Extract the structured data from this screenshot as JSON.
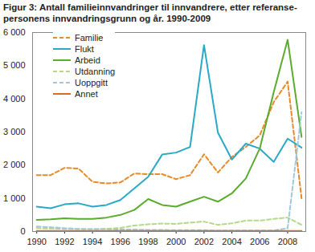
{
  "chart_data": {
    "type": "line",
    "title": "Figur 3: Antall familieinnvandringer til innvandrere, etter referanse-\npersonens innvandringsgrunn og år. 1990-2009",
    "x": [
      1990,
      1991,
      1992,
      1993,
      1994,
      1995,
      1996,
      1997,
      1998,
      1999,
      2000,
      2001,
      2002,
      2003,
      2004,
      2005,
      2006,
      2007,
      2008,
      2009
    ],
    "xlim": [
      1989.7,
      2009.3
    ],
    "xticks": [
      1990,
      1992,
      1994,
      1996,
      1998,
      2000,
      2002,
      2004,
      2006,
      2008
    ],
    "ylim": [
      0,
      6000
    ],
    "yticks": [
      0,
      {
        "value": 1000,
        "label": "1 000"
      },
      {
        "value": 2000,
        "label": "2 000"
      },
      {
        "value": 3000,
        "label": "3 000"
      },
      {
        "value": 4000,
        "label": "4 000"
      },
      {
        "value": 5000,
        "label": "5 000"
      },
      {
        "value": 6000,
        "label": "6 000"
      }
    ],
    "grid": false,
    "legend": "top-left",
    "series": [
      {
        "name": "Familie",
        "color": "#e8892b",
        "line_style": "dashed",
        "values": [
          1700,
          1700,
          1920,
          1900,
          1500,
          1450,
          1480,
          1750,
          1730,
          1730,
          1580,
          1700,
          2330,
          1780,
          2250,
          2550,
          2900,
          3900,
          4520,
          1000
        ]
      },
      {
        "name": "Flukt",
        "color": "#2aa8c7",
        "line_style": "solid",
        "values": [
          750,
          700,
          820,
          850,
          750,
          800,
          950,
          1300,
          1650,
          2320,
          2380,
          2550,
          5620,
          2980,
          2170,
          2650,
          2500,
          2100,
          2800,
          2530
        ]
      },
      {
        "name": "Arbeid",
        "color": "#5aab2e",
        "line_style": "solid",
        "values": [
          350,
          370,
          400,
          380,
          380,
          420,
          500,
          650,
          980,
          800,
          750,
          900,
          1050,
          900,
          1150,
          1600,
          2500,
          4200,
          5780,
          2850
        ]
      },
      {
        "name": "Utdanning",
        "color": "#b5d98a",
        "line_style": "dashed",
        "values": [
          100,
          90,
          80,
          70,
          70,
          80,
          110,
          180,
          220,
          240,
          230,
          270,
          300,
          200,
          250,
          330,
          330,
          380,
          420,
          200
        ]
      },
      {
        "name": "Uoppgitt",
        "color": "#9ec9dd",
        "line_style": "dashed",
        "values": [
          150,
          130,
          100,
          80,
          70,
          70,
          60,
          60,
          50,
          50,
          40,
          40,
          40,
          30,
          30,
          30,
          30,
          30,
          100,
          3600
        ]
      },
      {
        "name": "Annet",
        "color": "#e06a1b",
        "line_style": "solid",
        "values": [
          20,
          20,
          20,
          20,
          20,
          20,
          20,
          20,
          20,
          20,
          20,
          20,
          20,
          20,
          20,
          20,
          20,
          20,
          20,
          20
        ]
      }
    ]
  }
}
